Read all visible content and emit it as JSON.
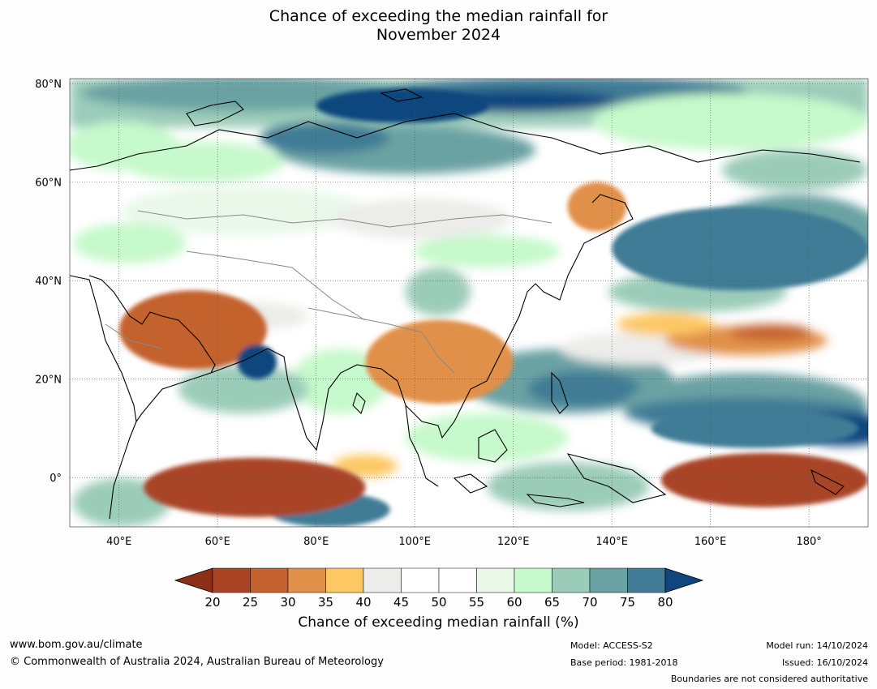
{
  "title_line1": "Chance of exceeding the median rainfall for",
  "title_line2": "November 2024",
  "chart_data": {
    "type": "heatmap",
    "title": "Chance of exceeding the median rainfall for November 2024",
    "xlabel": "",
    "ylabel": "",
    "x_ticks": [
      "40°E",
      "60°E",
      "80°E",
      "100°E",
      "120°E",
      "140°E",
      "160°E",
      "180°"
    ],
    "x_tick_values": [
      40,
      60,
      80,
      100,
      120,
      140,
      160,
      180
    ],
    "y_ticks": [
      "80°N",
      "60°N",
      "40°N",
      "20°N",
      "0°"
    ],
    "y_tick_values": [
      80,
      60,
      40,
      20,
      0
    ],
    "xlim": [
      30,
      192
    ],
    "ylim": [
      -10,
      81
    ],
    "colorbar": {
      "label": "Chance of exceeding median rainfall (%)",
      "ticks": [
        "20",
        "25",
        "30",
        "35",
        "40",
        "45",
        "50",
        "55",
        "60",
        "65",
        "70",
        "75",
        "80"
      ],
      "colors": [
        "#8b2f16",
        "#a94425",
        "#c4622f",
        "#e1904a",
        "#fdc864",
        "#ececea",
        "#ffffff",
        "#ffffff",
        "#e9f8e9",
        "#c6f9cb",
        "#9bccba",
        "#6aa2a3",
        "#417b95",
        "#10467e"
      ]
    },
    "regions": [
      {
        "value": 75,
        "lon": [
          70,
          95
        ],
        "lat": [
          -10,
          -3
        ]
      },
      {
        "value": 20,
        "lon": [
          45,
          90
        ],
        "lat": [
          -8,
          4
        ]
      },
      {
        "value": 20,
        "lon": [
          150,
          192
        ],
        "lat": [
          -6,
          5
        ]
      },
      {
        "value": 75,
        "lon": [
          148,
          190
        ],
        "lat": [
          6,
          14
        ]
      },
      {
        "value": 25,
        "lon": [
          40,
          70
        ],
        "lat": [
          22,
          38
        ]
      },
      {
        "value": 30,
        "lon": [
          90,
          120
        ],
        "lat": [
          15,
          32
        ]
      },
      {
        "value": 30,
        "lon": [
          131,
          143
        ],
        "lat": [
          50,
          60
        ]
      },
      {
        "value": 80,
        "lon": [
          80,
          115
        ],
        "lat": [
          72,
          79
        ]
      },
      {
        "value": 75,
        "lon": [
          140,
          192
        ],
        "lat": [
          38,
          55
        ]
      },
      {
        "value": 80,
        "lon": [
          64,
          72
        ],
        "lat": [
          20,
          27
        ]
      }
    ]
  },
  "footer": {
    "website": "www.bom.gov.au/climate",
    "copyright": "© Commonwealth of Australia 2024, Australian Bureau of Meteorology",
    "model": "Model: ACCESS-S2",
    "base_period": "Base period: 1981-2018",
    "model_run": "Model run: 14/10/2024",
    "issued": "Issued: 16/10/2024",
    "disclaimer": "Boundaries are not considered authoritative"
  }
}
